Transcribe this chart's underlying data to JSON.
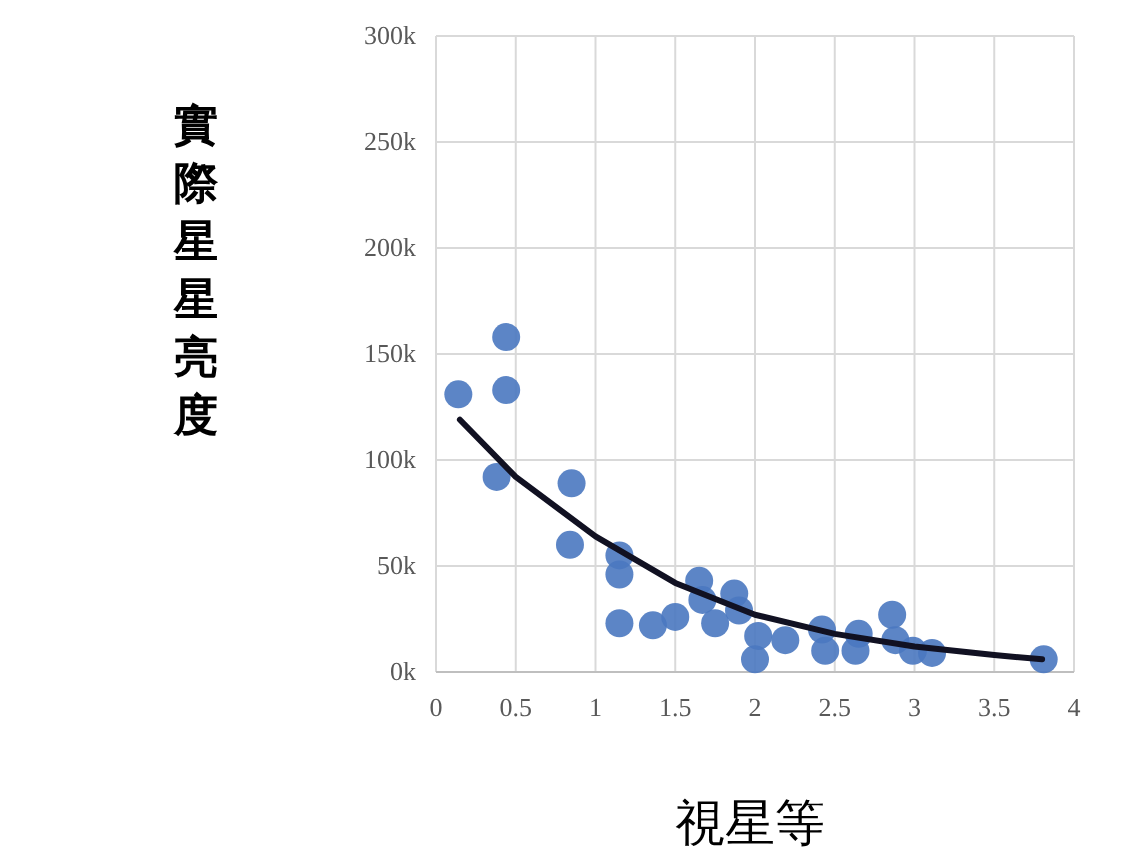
{
  "chart_data": {
    "type": "scatter",
    "xlabel": "視星等",
    "ylabel": "實際星星亮度",
    "xlim": [
      0,
      4
    ],
    "xticks": [
      0,
      0.5,
      1,
      1.5,
      2,
      2.5,
      3,
      3.5,
      4
    ],
    "ylim": [
      0,
      300000
    ],
    "yticks": [
      {
        "value": 0,
        "label": "0k"
      },
      {
        "value": 50000,
        "label": "50k"
      },
      {
        "value": 100000,
        "label": "100k"
      },
      {
        "value": 150000,
        "label": "150k"
      },
      {
        "value": 200000,
        "label": "200k"
      },
      {
        "value": 250000,
        "label": "250k"
      },
      {
        "value": 300000,
        "label": "300k"
      }
    ],
    "grid": true,
    "series": [
      {
        "marker": "circle",
        "color": "#4a78c0",
        "x": [
          0.14,
          0.44,
          0.44,
          0.38,
          0.85,
          0.84,
          1.15,
          1.15,
          1.15,
          1.36,
          1.5,
          1.65,
          1.67,
          1.75,
          1.87,
          1.9,
          2.0,
          2.02,
          2.19,
          2.42,
          2.44,
          2.65,
          2.63,
          2.86,
          2.88,
          2.99,
          3.11,
          3.81
        ],
        "values": [
          131000,
          158000,
          133000,
          92000,
          89000,
          60000,
          55000,
          46000,
          23000,
          22000,
          26000,
          43000,
          34000,
          23000,
          37000,
          29000,
          6000,
          17000,
          15000,
          20000,
          10000,
          18000,
          10000,
          27000,
          15000,
          10000,
          9000,
          6000
        ]
      },
      {
        "type": "line",
        "color": "#111122",
        "x": [
          0.15,
          0.5,
          1,
          1.5,
          2,
          2.5,
          3,
          3.5,
          3.8
        ],
        "values": [
          119000,
          92000,
          64000,
          42000,
          27000,
          18000,
          12000,
          8000,
          6000
        ]
      }
    ]
  }
}
